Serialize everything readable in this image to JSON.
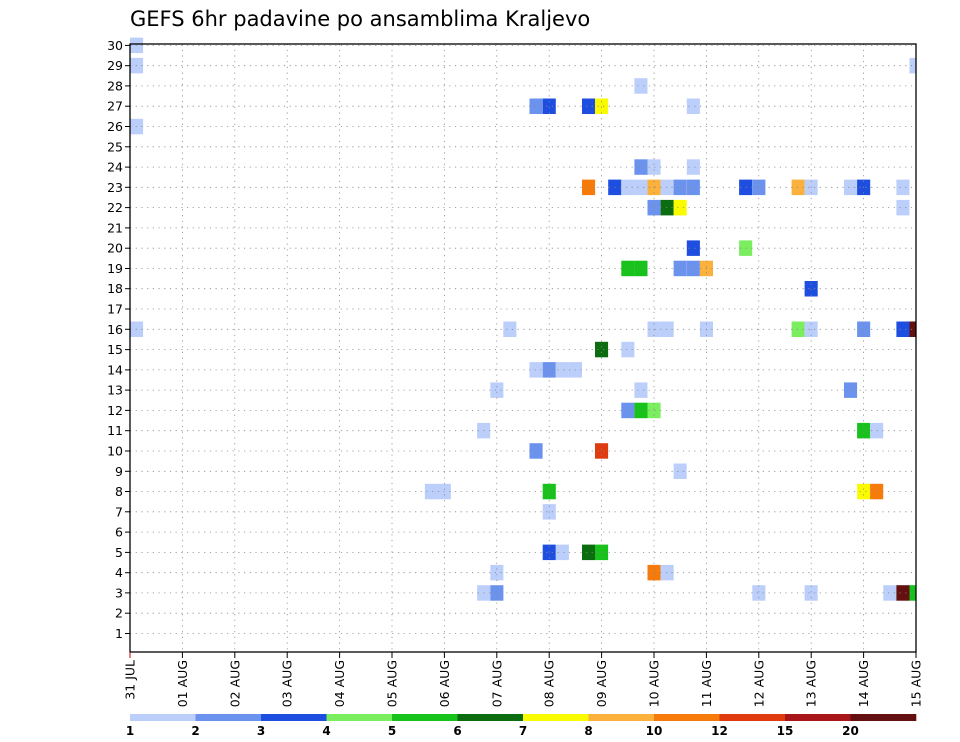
{
  "chart_data": {
    "type": "heatmap",
    "title": "GEFS 6hr padavine po ansamblima Kraljevo",
    "xlabel": "",
    "ylabel": "",
    "x_tick_labels": [
      "31 JUL",
      "01 AUG",
      "02 AUG",
      "03 AUG",
      "04 AUG",
      "05 AUG",
      "06 AUG",
      "07 AUG",
      "08 AUG",
      "09 AUG",
      "10 AUG",
      "11 AUG",
      "12 AUG",
      "13 AUG",
      "14 AUG",
      "15 AUG"
    ],
    "y_tick_labels": [
      "1",
      "2",
      "3",
      "4",
      "5",
      "6",
      "7",
      "8",
      "9",
      "10",
      "11",
      "12",
      "13",
      "14",
      "15",
      "16",
      "17",
      "18",
      "19",
      "20",
      "21",
      "22",
      "23",
      "24",
      "25",
      "26",
      "27",
      "28",
      "29",
      "30"
    ],
    "x_unit": "6-hour steps from 31 JUL 00Z",
    "xlim": [
      0,
      60
    ],
    "ylim": [
      0,
      31
    ],
    "grid": true,
    "colorbar": {
      "levels": [
        "1",
        "2",
        "3",
        "4",
        "5",
        "6",
        "7",
        "8",
        "10",
        "12",
        "15",
        "20"
      ],
      "colors": [
        "#bccffa",
        "#6b93ee",
        "#1d4ee0",
        "#7aee5f",
        "#17c21a",
        "#0b6c10",
        "#fbfb00",
        "#fbb13b",
        "#f77b0a",
        "#df3b0f",
        "#a8161a",
        "#640f10"
      ]
    },
    "cells": [
      {
        "x": 0.5,
        "y": 30,
        "c": 0
      },
      {
        "x": 0.5,
        "y": 29,
        "c": 0
      },
      {
        "x": 60,
        "y": 29,
        "c": 0
      },
      {
        "x": 39,
        "y": 28,
        "c": 0
      },
      {
        "x": 31,
        "y": 27,
        "c": 1
      },
      {
        "x": 32,
        "y": 27,
        "c": 2
      },
      {
        "x": 35,
        "y": 27,
        "c": 2
      },
      {
        "x": 36,
        "y": 27,
        "c": 6
      },
      {
        "x": 43,
        "y": 27,
        "c": 0
      },
      {
        "x": 0.5,
        "y": 26,
        "c": 0
      },
      {
        "x": 39,
        "y": 24,
        "c": 1
      },
      {
        "x": 40,
        "y": 24,
        "c": 0
      },
      {
        "x": 43,
        "y": 24,
        "c": 0
      },
      {
        "x": 35,
        "y": 23,
        "c": 8
      },
      {
        "x": 37,
        "y": 23,
        "c": 2
      },
      {
        "x": 38,
        "y": 23,
        "c": 0
      },
      {
        "x": 39,
        "y": 23,
        "c": 0
      },
      {
        "x": 40,
        "y": 23,
        "c": 7
      },
      {
        "x": 41,
        "y": 23,
        "c": 0
      },
      {
        "x": 42,
        "y": 23,
        "c": 1
      },
      {
        "x": 43,
        "y": 23,
        "c": 1
      },
      {
        "x": 47,
        "y": 23,
        "c": 2
      },
      {
        "x": 48,
        "y": 23,
        "c": 1
      },
      {
        "x": 51,
        "y": 23,
        "c": 7
      },
      {
        "x": 52,
        "y": 23,
        "c": 0
      },
      {
        "x": 55,
        "y": 23,
        "c": 0
      },
      {
        "x": 56,
        "y": 23,
        "c": 2
      },
      {
        "x": 59,
        "y": 23,
        "c": 0
      },
      {
        "x": 40,
        "y": 22,
        "c": 1
      },
      {
        "x": 41,
        "y": 22,
        "c": 5
      },
      {
        "x": 42,
        "y": 22,
        "c": 6
      },
      {
        "x": 59,
        "y": 22,
        "c": 0
      },
      {
        "x": 43,
        "y": 20,
        "c": 2
      },
      {
        "x": 47,
        "y": 20,
        "c": 3
      },
      {
        "x": 38,
        "y": 19,
        "c": 4
      },
      {
        "x": 39,
        "y": 19,
        "c": 4
      },
      {
        "x": 42,
        "y": 19,
        "c": 1
      },
      {
        "x": 43,
        "y": 19,
        "c": 1
      },
      {
        "x": 44,
        "y": 19,
        "c": 7
      },
      {
        "x": 52,
        "y": 18,
        "c": 2
      },
      {
        "x": 0.5,
        "y": 16,
        "c": 0
      },
      {
        "x": 29,
        "y": 16,
        "c": 0
      },
      {
        "x": 40,
        "y": 16,
        "c": 0
      },
      {
        "x": 41,
        "y": 16,
        "c": 0
      },
      {
        "x": 44,
        "y": 16,
        "c": 0
      },
      {
        "x": 51,
        "y": 16,
        "c": 3
      },
      {
        "x": 52,
        "y": 16,
        "c": 0
      },
      {
        "x": 56,
        "y": 16,
        "c": 1
      },
      {
        "x": 59,
        "y": 16,
        "c": 2
      },
      {
        "x": 60,
        "y": 16,
        "c": 11
      },
      {
        "x": 36,
        "y": 15,
        "c": 5
      },
      {
        "x": 38,
        "y": 15,
        "c": 0
      },
      {
        "x": 31,
        "y": 14,
        "c": 0
      },
      {
        "x": 32,
        "y": 14,
        "c": 1
      },
      {
        "x": 33,
        "y": 14,
        "c": 0
      },
      {
        "x": 34,
        "y": 14,
        "c": 0
      },
      {
        "x": 28,
        "y": 13,
        "c": 0
      },
      {
        "x": 39,
        "y": 13,
        "c": 0
      },
      {
        "x": 55,
        "y": 13,
        "c": 1
      },
      {
        "x": 38,
        "y": 12,
        "c": 1
      },
      {
        "x": 39,
        "y": 12,
        "c": 4
      },
      {
        "x": 40,
        "y": 12,
        "c": 3
      },
      {
        "x": 27,
        "y": 11,
        "c": 0
      },
      {
        "x": 56,
        "y": 11,
        "c": 4
      },
      {
        "x": 57,
        "y": 11,
        "c": 0
      },
      {
        "x": 31,
        "y": 10,
        "c": 1
      },
      {
        "x": 36,
        "y": 10,
        "c": 9
      },
      {
        "x": 42,
        "y": 9,
        "c": 0
      },
      {
        "x": 23,
        "y": 8,
        "c": 0
      },
      {
        "x": 24,
        "y": 8,
        "c": 0
      },
      {
        "x": 32,
        "y": 8,
        "c": 4
      },
      {
        "x": 56,
        "y": 8,
        "c": 6
      },
      {
        "x": 57,
        "y": 8,
        "c": 8
      },
      {
        "x": 32,
        "y": 7,
        "c": 0
      },
      {
        "x": 32,
        "y": 5,
        "c": 2
      },
      {
        "x": 33,
        "y": 5,
        "c": 0
      },
      {
        "x": 35,
        "y": 5,
        "c": 5
      },
      {
        "x": 36,
        "y": 5,
        "c": 4
      },
      {
        "x": 28,
        "y": 4,
        "c": 0
      },
      {
        "x": 40,
        "y": 4,
        "c": 8
      },
      {
        "x": 41,
        "y": 4,
        "c": 0
      },
      {
        "x": 27,
        "y": 3,
        "c": 0
      },
      {
        "x": 28,
        "y": 3,
        "c": 1
      },
      {
        "x": 48,
        "y": 3,
        "c": 0
      },
      {
        "x": 52,
        "y": 3,
        "c": 0
      },
      {
        "x": 58,
        "y": 3,
        "c": 0
      },
      {
        "x": 59,
        "y": 3,
        "c": 11
      },
      {
        "x": 60,
        "y": 3,
        "c": 4
      }
    ]
  }
}
